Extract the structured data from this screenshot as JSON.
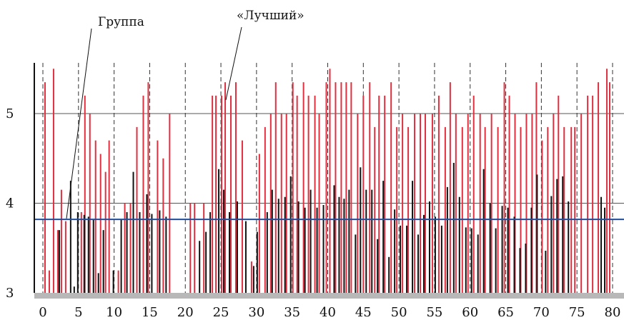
{
  "chart_data": {
    "type": "bar",
    "title": "",
    "xlabel": "",
    "ylabel": "",
    "xlim": [
      0,
      80
    ],
    "ylim": [
      3,
      5.6
    ],
    "x_ticks": [
      0,
      5,
      10,
      15,
      20,
      25,
      30,
      35,
      40,
      45,
      50,
      55,
      60,
      65,
      70,
      75,
      80
    ],
    "y_ticks": [
      3,
      4,
      5
    ],
    "annotations": {
      "group_label": "Группа",
      "best_label": "«Лучший»"
    },
    "reference_line": {
      "value": 3.82,
      "color": "#1f4e9e"
    },
    "colors": {
      "red": "#e03040",
      "black": "#111111",
      "blue": "#1f4e9e"
    },
    "series": [
      {
        "color": "red",
        "points": [
          [
            0.3,
            5.35
          ],
          [
            0.9,
            3.25
          ],
          [
            1.5,
            5.5
          ],
          [
            2.1,
            3.7
          ],
          [
            2.6,
            4.15
          ],
          [
            3.2,
            3.8
          ],
          [
            5.4,
            3.9
          ],
          [
            5.9,
            5.2
          ],
          [
            6.6,
            5.0
          ],
          [
            7.4,
            4.7
          ],
          [
            8.1,
            4.55
          ],
          [
            8.8,
            4.35
          ],
          [
            9.3,
            4.7
          ],
          [
            10.6,
            3.25
          ],
          [
            11.5,
            4.0
          ],
          [
            12.3,
            4.0
          ],
          [
            13.2,
            4.85
          ],
          [
            14.1,
            5.2
          ],
          [
            14.8,
            5.35
          ],
          [
            16.1,
            4.7
          ],
          [
            16.9,
            4.5
          ],
          [
            17.8,
            5.0
          ],
          [
            20.7,
            4.0
          ],
          [
            21.3,
            4.0
          ],
          [
            22.6,
            4.0
          ],
          [
            23.8,
            5.2
          ],
          [
            24.3,
            5.2
          ],
          [
            25.1,
            5.2
          ],
          [
            25.6,
            5.35
          ],
          [
            26.4,
            5.2
          ],
          [
            27.1,
            5.35
          ],
          [
            28.0,
            4.7
          ],
          [
            29.3,
            3.35
          ],
          [
            30.4,
            4.55
          ],
          [
            31.2,
            4.85
          ],
          [
            32.0,
            5.0
          ],
          [
            32.7,
            5.35
          ],
          [
            33.5,
            5.0
          ],
          [
            34.2,
            5.0
          ],
          [
            35.1,
            5.35
          ],
          [
            35.7,
            5.2
          ],
          [
            36.6,
            5.35
          ],
          [
            37.3,
            5.2
          ],
          [
            38.2,
            5.2
          ],
          [
            38.8,
            5.0
          ],
          [
            39.8,
            5.35
          ],
          [
            40.3,
            5.5
          ],
          [
            41.1,
            5.35
          ],
          [
            41.9,
            5.35
          ],
          [
            42.6,
            5.35
          ],
          [
            43.3,
            5.35
          ],
          [
            44.2,
            5.0
          ],
          [
            45.0,
            5.2
          ],
          [
            45.9,
            5.35
          ],
          [
            46.6,
            4.85
          ],
          [
            47.2,
            5.2
          ],
          [
            48.0,
            5.2
          ],
          [
            48.9,
            5.35
          ],
          [
            49.7,
            4.85
          ],
          [
            50.5,
            5.0
          ],
          [
            51.3,
            4.85
          ],
          [
            52.2,
            5.0
          ],
          [
            53.0,
            5.0
          ],
          [
            53.7,
            5.0
          ],
          [
            54.7,
            5.0
          ],
          [
            55.6,
            5.2
          ],
          [
            56.5,
            4.85
          ],
          [
            57.2,
            5.35
          ],
          [
            58.0,
            5.0
          ],
          [
            58.9,
            4.85
          ],
          [
            59.7,
            5.0
          ],
          [
            60.5,
            5.2
          ],
          [
            61.4,
            5.0
          ],
          [
            62.1,
            4.85
          ],
          [
            63.0,
            5.0
          ],
          [
            63.9,
            4.85
          ],
          [
            64.8,
            5.35
          ],
          [
            65.5,
            5.2
          ],
          [
            66.3,
            5.0
          ],
          [
            67.1,
            4.85
          ],
          [
            67.9,
            5.0
          ],
          [
            68.7,
            5.0
          ],
          [
            69.3,
            5.35
          ],
          [
            70.1,
            4.7
          ],
          [
            70.9,
            4.85
          ],
          [
            71.7,
            5.0
          ],
          [
            72.4,
            5.2
          ],
          [
            73.2,
            4.85
          ],
          [
            74.2,
            4.85
          ],
          [
            74.7,
            4.85
          ],
          [
            75.6,
            5.0
          ],
          [
            76.5,
            5.2
          ],
          [
            77.2,
            5.2
          ],
          [
            78.0,
            5.35
          ],
          [
            79.2,
            5.5
          ],
          [
            79.6,
            5.35
          ]
        ]
      },
      {
        "color": "black",
        "points": [
          [
            2.3,
            3.7
          ],
          [
            3.9,
            4.25
          ],
          [
            4.4,
            3.07
          ],
          [
            4.9,
            3.9
          ],
          [
            5.8,
            3.87
          ],
          [
            6.4,
            3.85
          ],
          [
            7.1,
            3.82
          ],
          [
            7.8,
            3.22
          ],
          [
            8.5,
            3.7
          ],
          [
            9.9,
            3.25
          ],
          [
            11.0,
            3.82
          ],
          [
            11.8,
            3.9
          ],
          [
            12.7,
            4.35
          ],
          [
            13.6,
            3.9
          ],
          [
            14.6,
            4.1
          ],
          [
            15.3,
            3.88
          ],
          [
            16.4,
            3.92
          ],
          [
            17.3,
            3.85
          ],
          [
            22.0,
            3.58
          ],
          [
            22.9,
            3.68
          ],
          [
            23.5,
            3.9
          ],
          [
            24.7,
            4.38
          ],
          [
            25.4,
            4.15
          ],
          [
            26.2,
            3.9
          ],
          [
            27.3,
            4.02
          ],
          [
            28.5,
            3.8
          ],
          [
            29.6,
            3.3
          ],
          [
            30.1,
            3.68
          ],
          [
            31.5,
            3.9
          ],
          [
            32.2,
            4.15
          ],
          [
            33.1,
            4.05
          ],
          [
            34.0,
            4.07
          ],
          [
            34.8,
            4.3
          ],
          [
            35.9,
            4.02
          ],
          [
            36.8,
            3.95
          ],
          [
            37.6,
            4.15
          ],
          [
            38.5,
            3.95
          ],
          [
            39.4,
            3.98
          ],
          [
            40.9,
            4.2
          ],
          [
            41.6,
            4.07
          ],
          [
            42.3,
            4.05
          ],
          [
            43.0,
            4.15
          ],
          [
            43.9,
            3.65
          ],
          [
            44.6,
            4.4
          ],
          [
            45.4,
            4.15
          ],
          [
            46.2,
            4.15
          ],
          [
            47.0,
            3.6
          ],
          [
            47.8,
            4.25
          ],
          [
            48.6,
            3.4
          ],
          [
            49.4,
            3.93
          ],
          [
            50.2,
            3.75
          ],
          [
            51.1,
            3.75
          ],
          [
            51.9,
            4.25
          ],
          [
            52.7,
            3.65
          ],
          [
            53.5,
            3.87
          ],
          [
            54.3,
            4.02
          ],
          [
            55.1,
            3.85
          ],
          [
            56.0,
            3.75
          ],
          [
            56.8,
            4.18
          ],
          [
            57.7,
            4.45
          ],
          [
            58.5,
            4.07
          ],
          [
            59.4,
            3.73
          ],
          [
            60.2,
            3.72
          ],
          [
            61.1,
            3.65
          ],
          [
            61.9,
            4.38
          ],
          [
            62.8,
            4.0
          ],
          [
            63.6,
            3.72
          ],
          [
            64.5,
            3.97
          ],
          [
            65.3,
            3.95
          ],
          [
            66.2,
            3.85
          ],
          [
            67.0,
            3.5
          ],
          [
            67.8,
            3.55
          ],
          [
            68.6,
            3.95
          ],
          [
            69.4,
            4.32
          ],
          [
            70.6,
            3.47
          ],
          [
            71.4,
            4.08
          ],
          [
            72.2,
            4.27
          ],
          [
            73.0,
            4.3
          ],
          [
            73.8,
            4.02
          ],
          [
            78.4,
            4.07
          ],
          [
            78.9,
            3.95
          ]
        ]
      }
    ]
  }
}
